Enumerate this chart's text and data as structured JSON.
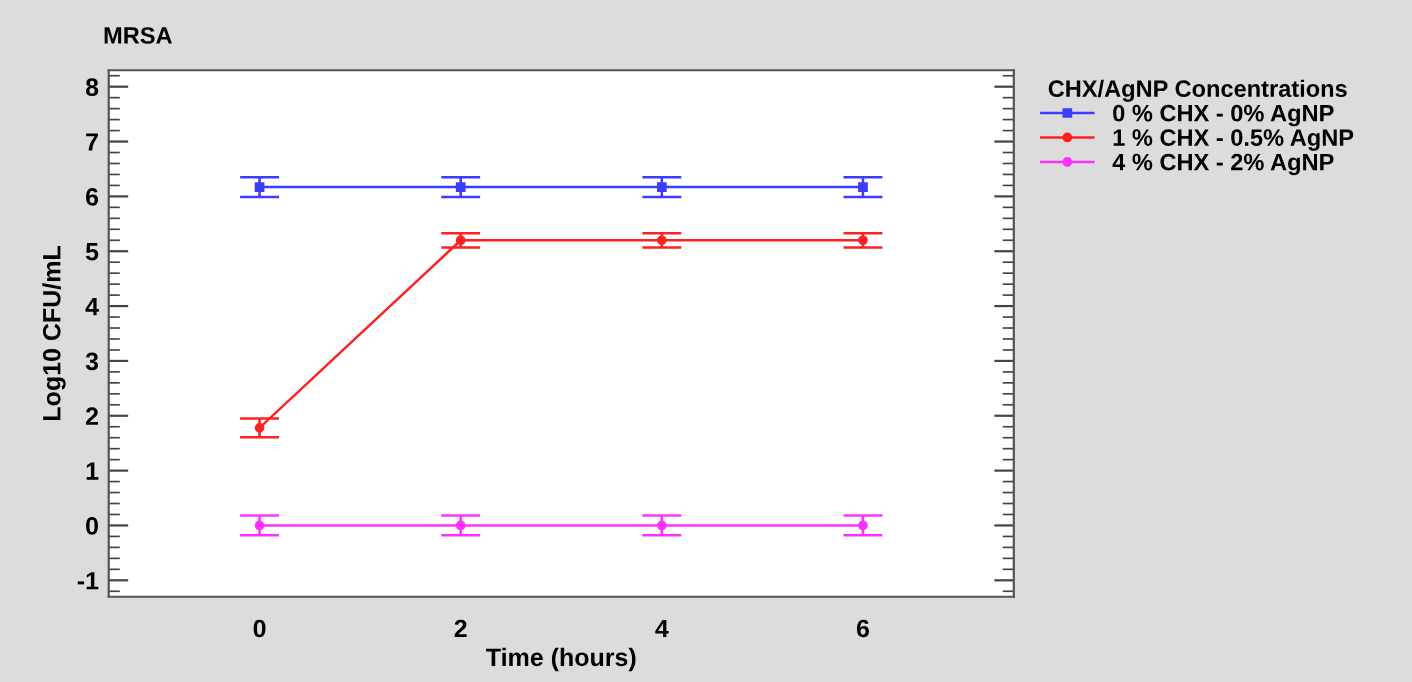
{
  "chart_data": {
    "type": "line",
    "title": "MRSA",
    "xlabel": "Time (hours)",
    "ylabel": "Log10 CFU/mL",
    "legend_title": "CHX/AgNP Concentrations",
    "x": [
      0,
      2,
      4,
      6
    ],
    "series": [
      {
        "name": "0 % CHX - 0% AgNP",
        "color": "#3c3cff",
        "marker": "square",
        "values": [
          6.17,
          6.17,
          6.17,
          6.17
        ],
        "errors": [
          0.18,
          0.18,
          0.18,
          0.18
        ]
      },
      {
        "name": "1 % CHX - 0.5% AgNP",
        "color": "#ff2020",
        "marker": "circle",
        "values": [
          1.78,
          5.2,
          5.2,
          5.2
        ],
        "errors": [
          0.17,
          0.13,
          0.13,
          0.13
        ]
      },
      {
        "name": "4 % CHX - 2% AgNP",
        "color": "#ff30ff",
        "marker": "circle",
        "values": [
          0,
          0,
          0,
          0
        ],
        "errors": [
          0.18,
          0.18,
          0.18,
          0.18
        ]
      }
    ],
    "xlim": [
      -1.5,
      7.5
    ],
    "xticks": [
      0,
      2,
      4,
      6
    ],
    "ylim": [
      -1.3,
      8.3
    ],
    "yticks": [
      -1,
      0,
      1,
      2,
      3,
      4,
      5,
      6,
      7,
      8
    ],
    "grid": false,
    "legend": "top right",
    "line_style": "solid"
  }
}
